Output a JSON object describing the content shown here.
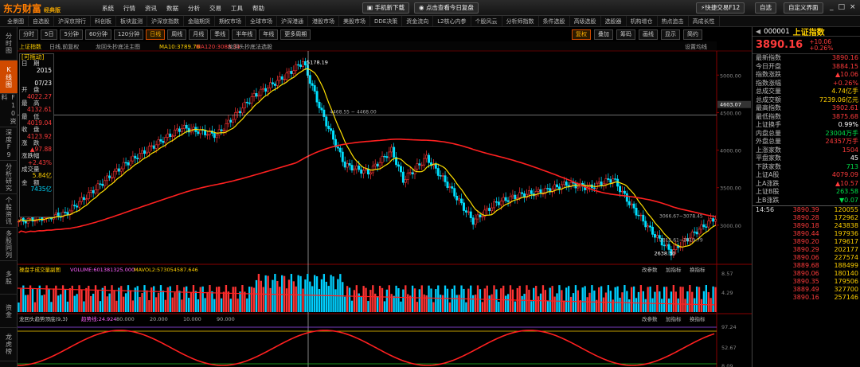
{
  "topbar": {
    "logo": "东方财富",
    "edition": "经典版",
    "menu": [
      "系统",
      "行情",
      "资讯",
      "数据",
      "分析",
      "交易",
      "工具",
      "帮助"
    ],
    "download": "手机新下载",
    "replay": "点击查看今日复盘",
    "hotkey": "快捷交易F12",
    "bookmark": "自选",
    "layout": "自定义界面",
    "window": [
      "_",
      "□",
      "×"
    ]
  },
  "navbar": [
    "全景图",
    "自选股",
    "沪深京排行",
    "科创板",
    "板块监测",
    "沪深京指数",
    "金融期货",
    "期权市场",
    "全球市场",
    "沪深港通",
    "港股市场",
    "美股市场",
    "DDE决策",
    "资金流向",
    "L2核心内参",
    "个股风云",
    "分析师指数",
    "条件选股",
    "高级选股",
    "选股器",
    "机构增仓",
    "热点追击",
    "高成长性"
  ],
  "sidebar": [
    "分时图",
    "K线图",
    "F10资料",
    "深度F9",
    "分析研究",
    "个股资讯",
    "多股同列",
    "多股",
    "资金",
    "龙虎榜"
  ],
  "periods": [
    "分时",
    "5日",
    "5分钟",
    "60分钟",
    "120分钟",
    "日线",
    "周线",
    "月线",
    "季线",
    "半年线",
    "年线",
    "更多周期"
  ],
  "active_period": "日线",
  "tools": [
    "复权",
    "叠加",
    "筹码",
    "画线",
    "显示",
    "简约"
  ],
  "chart": {
    "index_name": "上证指数",
    "mode": "日线,前复权",
    "ma10": "MA10:3789.76",
    "ma120": "MA120:3088.34",
    "indicator": "龙回头抄底法主图",
    "stock_label": "龙回头抄底法选股",
    "setting": "设置均线",
    "price_ticks": [
      "5000.00",
      "4500.00",
      "4000.00",
      "3500.00",
      "3000.00"
    ],
    "cursor_price": "4603.07",
    "horiz_note": "4468.55 ~ 4468.00",
    "labels": {
      "high": "5178.19",
      "low": "2638.30",
      "mid": "2815.61~2819.79",
      "mid2": "3066.67~3078.45"
    }
  },
  "volume": {
    "title": "操盘手成交量副图",
    "vol": "VOLUME:601381325.000",
    "ma": "MAVOL2:573054587.646",
    "btns": [
      "改参数",
      "加指标",
      "换指标"
    ],
    "ticks": [
      "8.57",
      "4.29"
    ]
  },
  "oscillator": {
    "title": "龙回头趋势顶底(9,3)",
    "trend": "趋势线:24.924",
    "lines": [
      "80.000",
      "20.000",
      "10.000",
      "90.000"
    ],
    "btns": [
      "改参数",
      "加指标",
      "换指标"
    ],
    "ticks": [
      "97.24",
      "52.67",
      "8.09"
    ]
  },
  "datapanel": [
    {
      "label": "日　期",
      "value": "2015",
      "cls": "white"
    },
    {
      "label": "",
      "value": "07/23",
      "cls": "white"
    },
    {
      "label": "开　盘",
      "value": "4022.27",
      "cls": "red"
    },
    {
      "label": "最　高",
      "value": "4132.61",
      "cls": "red"
    },
    {
      "label": "最　低",
      "value": "4019.04",
      "cls": "red"
    },
    {
      "label": "收　盘",
      "value": "4123.92",
      "cls": "red"
    },
    {
      "label": "涨　跌",
      "value": "▲97.88",
      "cls": "red"
    },
    {
      "label": "涨跌幅",
      "value": "+2.43%",
      "cls": "red"
    },
    {
      "label": "成交量",
      "value": "5.84亿",
      "cls": "yellow"
    },
    {
      "label": "金　额",
      "value": "7435亿",
      "cls": "cyan"
    }
  ],
  "datapanel_title": "[可拖动]",
  "quote": {
    "code": "000001",
    "name": "上证指数",
    "price": "3890.16",
    "change": "+10.06",
    "pct": "+0.26%",
    "rows": [
      {
        "l": "最新指数",
        "v": "3890.16",
        "c": "red"
      },
      {
        "l": "今日开盘",
        "v": "3884.15",
        "c": "red"
      },
      {
        "l": "指数涨跌",
        "v": "▲10.06",
        "c": "red"
      },
      {
        "l": "指数涨幅",
        "v": "+0.26%",
        "c": "red"
      },
      {
        "l": "总成交量",
        "v": "4.74亿手",
        "c": "yellow"
      },
      {
        "l": "总成交额",
        "v": "7239.06亿元",
        "c": "yellow"
      },
      {
        "l": "最高指数",
        "v": "3902.61",
        "c": "red"
      },
      {
        "l": "最低指数",
        "v": "3875.68",
        "c": "red"
      },
      {
        "l": "上证换手",
        "v": "0.99%",
        "c": "white"
      },
      {
        "l": "内盘总量",
        "v": "23004万手",
        "c": "green"
      },
      {
        "l": "外盘总量",
        "v": "24357万手",
        "c": "red"
      },
      {
        "l": "上涨家数",
        "v": "1504",
        "c": "red"
      },
      {
        "l": "平盘家数",
        "v": "45",
        "c": "white"
      },
      {
        "l": "下跌家数",
        "v": "713",
        "c": "green"
      },
      {
        "l": "上证A股",
        "v": "4079.09",
        "c": "red"
      },
      {
        "l": "上A涨跌",
        "v": "▲10.57",
        "c": "red"
      },
      {
        "l": "上证B股",
        "v": "263.58",
        "c": "green"
      },
      {
        "l": "上B涨跌",
        "v": "▼0.07",
        "c": "green"
      }
    ],
    "ticks": [
      {
        "t": "14:56",
        "p": "3890.39",
        "v": "120055"
      },
      {
        "t": "",
        "p": "3890.28",
        "v": "172962"
      },
      {
        "t": "",
        "p": "3890.18",
        "v": "243838"
      },
      {
        "t": "",
        "p": "3890.44",
        "v": "197936"
      },
      {
        "t": "",
        "p": "3890.20",
        "v": "179617"
      },
      {
        "t": "",
        "p": "3890.29",
        "v": "202177"
      },
      {
        "t": "",
        "p": "3890.06",
        "v": "227574"
      },
      {
        "t": "",
        "p": "3889.68",
        "v": "188499"
      },
      {
        "t": "",
        "p": "3890.06",
        "v": "180140"
      },
      {
        "t": "",
        "p": "3890.35",
        "v": "179506"
      },
      {
        "t": "",
        "p": "3889.49",
        "v": "327700"
      },
      {
        "t": "",
        "p": "3890.16",
        "v": "257146"
      }
    ]
  }
}
